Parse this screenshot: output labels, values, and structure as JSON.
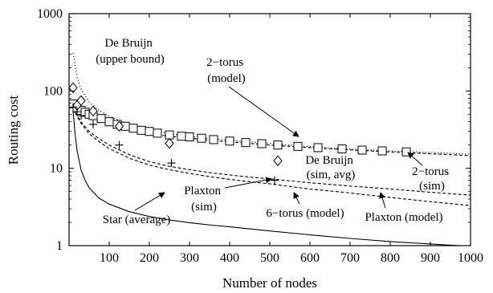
{
  "chart_data": {
    "type": "line",
    "xlabel": "Number of nodes",
    "ylabel": "Routing cost",
    "xlim": [
      0,
      1000
    ],
    "ylim": [
      1,
      1000
    ],
    "yscale": "log",
    "grid": false,
    "legend": "none",
    "x_ticks": [
      100,
      200,
      300,
      400,
      500,
      600,
      700,
      800,
      900,
      1000
    ],
    "x_tick_labels": [
      "100",
      "200",
      "300",
      "400",
      "500",
      "600",
      "700",
      "800",
      "900",
      "1000"
    ],
    "y_ticks": [
      1,
      10,
      100,
      1000
    ],
    "y_tick_labels": [
      "1",
      "10",
      "100",
      "1000"
    ],
    "annotations": [
      {
        "id": "debruijn-upper",
        "lines": [
          "De Bruijn",
          "(upper bound)"
        ]
      },
      {
        "id": "torus2-model",
        "lines": [
          "2−torus",
          "(model)"
        ]
      },
      {
        "id": "debruijn-sim",
        "lines": [
          "De Bruijn",
          "(sim, avg)"
        ]
      },
      {
        "id": "torus2-sim",
        "lines": [
          "2−torus",
          "(sim)"
        ]
      },
      {
        "id": "plaxton-sim",
        "lines": [
          "Plaxton",
          "(sim)"
        ]
      },
      {
        "id": "star-avg",
        "lines": [
          "Star (average)"
        ]
      },
      {
        "id": "torus6-model",
        "lines": [
          "6−torus (model)"
        ]
      },
      {
        "id": "plaxton-model",
        "lines": [
          "Plaxton (model)"
        ]
      }
    ],
    "series": [
      {
        "id": "debruijn_upper",
        "style": "dotted",
        "x": [
          10,
          20,
          30,
          50,
          75,
          100,
          150,
          200,
          250,
          300,
          350,
          400,
          450,
          500,
          600,
          700,
          800,
          900,
          1000
        ],
        "y": [
          310,
          150,
          105,
          72,
          56,
          47,
          37,
          31.5,
          28,
          25.8,
          24.2,
          23,
          22,
          21,
          19,
          17.8,
          16.8,
          16,
          15.2
        ]
      },
      {
        "id": "torus2_model",
        "style": "dashed",
        "x": [
          10,
          20,
          30,
          50,
          75,
          100,
          150,
          200,
          250,
          300,
          350,
          400,
          450,
          500,
          600,
          700,
          800,
          900,
          1000
        ],
        "y": [
          75,
          60,
          54,
          48,
          42,
          38,
          32,
          28,
          26,
          24.5,
          23,
          22,
          21,
          20,
          18.5,
          17.3,
          16.3,
          15.4,
          14.6
        ]
      },
      {
        "id": "torus6_model",
        "style": "dashed",
        "x": [
          10,
          20,
          30,
          50,
          75,
          100,
          150,
          200,
          250,
          300,
          350,
          400,
          450,
          500,
          600,
          700,
          800,
          900,
          1000
        ],
        "y": [
          60,
          48,
          40,
          30,
          24,
          20,
          15,
          12.2,
          10.6,
          9.6,
          8.8,
          8.2,
          7.7,
          7.3,
          6.5,
          5.9,
          5.4,
          4.9,
          4.5
        ]
      },
      {
        "id": "plaxton_model",
        "style": "dashed",
        "x": [
          10,
          20,
          30,
          50,
          75,
          100,
          150,
          200,
          250,
          300,
          350,
          400,
          450,
          500,
          600,
          700,
          800,
          900,
          1000
        ],
        "y": [
          60,
          47,
          38,
          28,
          22,
          18,
          13.5,
          11,
          9.6,
          8.6,
          7.8,
          7.2,
          6.7,
          6.3,
          5.4,
          4.8,
          4.2,
          3.7,
          3.3
        ]
      },
      {
        "id": "star_average",
        "style": "solid",
        "x": [
          10,
          15,
          20,
          30,
          40,
          50,
          75,
          100,
          150,
          200,
          250,
          300,
          350,
          400,
          500,
          600,
          700,
          800,
          900,
          1000
        ],
        "y": [
          55,
          28,
          17,
          9.5,
          7,
          5.6,
          4.1,
          3.45,
          2.75,
          2.38,
          2.15,
          1.98,
          1.85,
          1.75,
          1.55,
          1.38,
          1.24,
          1.13,
          1.05,
          0.98
        ]
      },
      {
        "id": "torus2_sim",
        "marker": "square",
        "x": [
          10,
          20,
          30,
          40,
          50,
          60,
          80,
          100,
          120,
          140,
          160,
          180,
          200,
          220,
          250,
          280,
          300,
          330,
          360,
          400,
          440,
          480,
          520,
          570,
          620,
          680,
          730,
          780,
          840
        ],
        "y": [
          68,
          60,
          56,
          53,
          50,
          48,
          44,
          40,
          37,
          35,
          33,
          31,
          30,
          28.5,
          27,
          26,
          25.5,
          24.5,
          23.5,
          22.5,
          21.5,
          20.8,
          20,
          19.2,
          18.5,
          17.8,
          17.2,
          16.8,
          16.3
        ]
      },
      {
        "id": "debruijn_sim",
        "marker": "diamond",
        "x": [
          10,
          20,
          30,
          60,
          125,
          250,
          520
        ],
        "y": [
          110,
          65,
          75,
          55,
          35,
          21,
          12.5
        ]
      },
      {
        "id": "plaxton_sim",
        "marker": "plus",
        "x": [
          10,
          20,
          30,
          60,
          125,
          255,
          512
        ],
        "y": [
          62,
          54,
          48,
          37,
          20,
          11.7,
          7
        ]
      }
    ]
  }
}
